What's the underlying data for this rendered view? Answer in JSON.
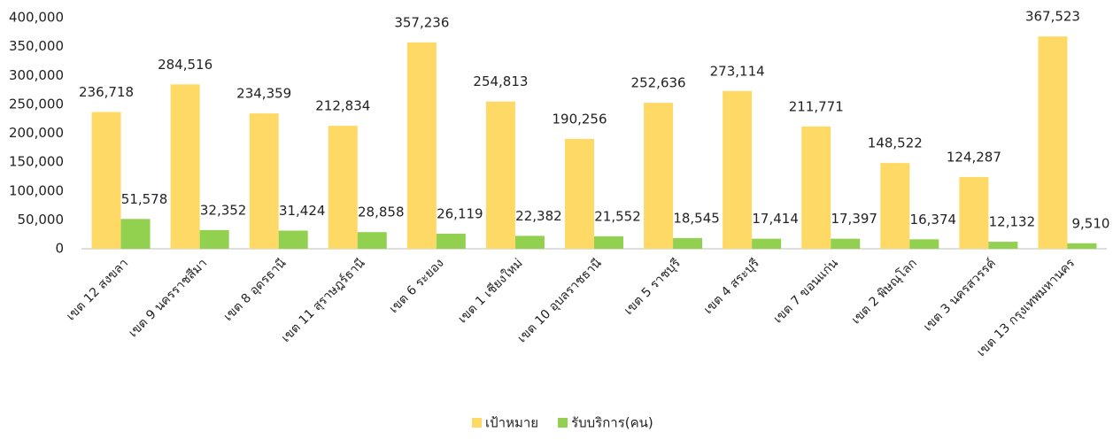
{
  "chart_data": {
    "type": "bar",
    "categories": [
      "เขต 12 สงขลา",
      "เขต 9 นครราชสีมา",
      "เขต 8 อุดรธานี",
      "เขต 11 สุราษฎร์ธานี",
      "เขต 6 ระยอง",
      "เขต 1 เชียงใหม่",
      "เขต 10 อุบลราชธานี",
      "เขต 5 ราชบุรี",
      "เขต 4 สระบุรี",
      "เขต 7 ขอนแก่น",
      "เขต 2 พิษณุโลก",
      "เขต 3 นครสวรรค์",
      "เขต 13 กรุงเทพมหานคร"
    ],
    "series": [
      {
        "name": "เป้าหมาย",
        "color": "#ffd966",
        "values": [
          236718,
          284516,
          234359,
          212834,
          357236,
          254813,
          190256,
          252636,
          273114,
          211771,
          148522,
          124287,
          367523
        ],
        "value_labels": [
          "236,718",
          "284,516",
          "234,359",
          "212,834",
          "357,236",
          "254,813",
          "190,256",
          "252,636",
          "273,114",
          "211,771",
          "148,522",
          "124,287",
          "367,523"
        ]
      },
      {
        "name": "รับบริการ(คน)",
        "color": "#92d050",
        "values": [
          51578,
          32352,
          31424,
          28858,
          26119,
          22382,
          21552,
          18545,
          17414,
          17397,
          16374,
          12132,
          9510
        ],
        "value_labels": [
          "51,578",
          "32,352",
          "31,424",
          "28,858",
          "26,119",
          "22,382",
          "21,552",
          "18,545",
          "17,414",
          "17,397",
          "16,374",
          "12,132",
          "9,510"
        ]
      }
    ],
    "ylim": [
      0,
      400000
    ],
    "yticks": [
      0,
      {
        "value": 50000,
        "label": "50,000"
      },
      {
        "value": 100000,
        "label": "100,000"
      },
      {
        "value": 150000,
        "label": "150,000"
      },
      {
        "value": 200000,
        "label": "200,000"
      },
      {
        "value": 250000,
        "label": "250,000"
      },
      {
        "value": 300000,
        "label": "300,000"
      },
      {
        "value": 350000,
        "label": "350,000"
      },
      {
        "value": 400000,
        "label": "400,000"
      }
    ],
    "grid": false,
    "legend": "bottom"
  }
}
